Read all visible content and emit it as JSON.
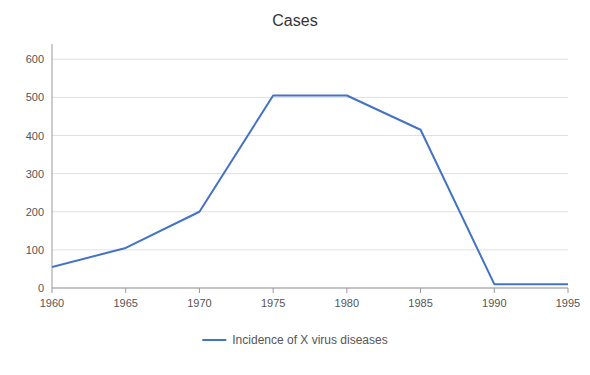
{
  "chart_data": {
    "type": "line",
    "title": "Cases",
    "x": [
      1960,
      1965,
      1970,
      1975,
      1980,
      1985,
      1990,
      1995
    ],
    "series": [
      {
        "name": "Incidence of X virus diseases",
        "color": "#4472C4",
        "values": [
          55,
          105,
          200,
          505,
          505,
          415,
          10,
          10
        ]
      }
    ],
    "xlim": [
      1960,
      1995
    ],
    "xticks": [
      1960,
      1965,
      1970,
      1975,
      1980,
      1985,
      1990,
      1995
    ],
    "ylim": [
      0,
      640
    ],
    "yticks": [
      0,
      100,
      200,
      300,
      400,
      500,
      600
    ],
    "grid": true,
    "legend": "bottom"
  }
}
